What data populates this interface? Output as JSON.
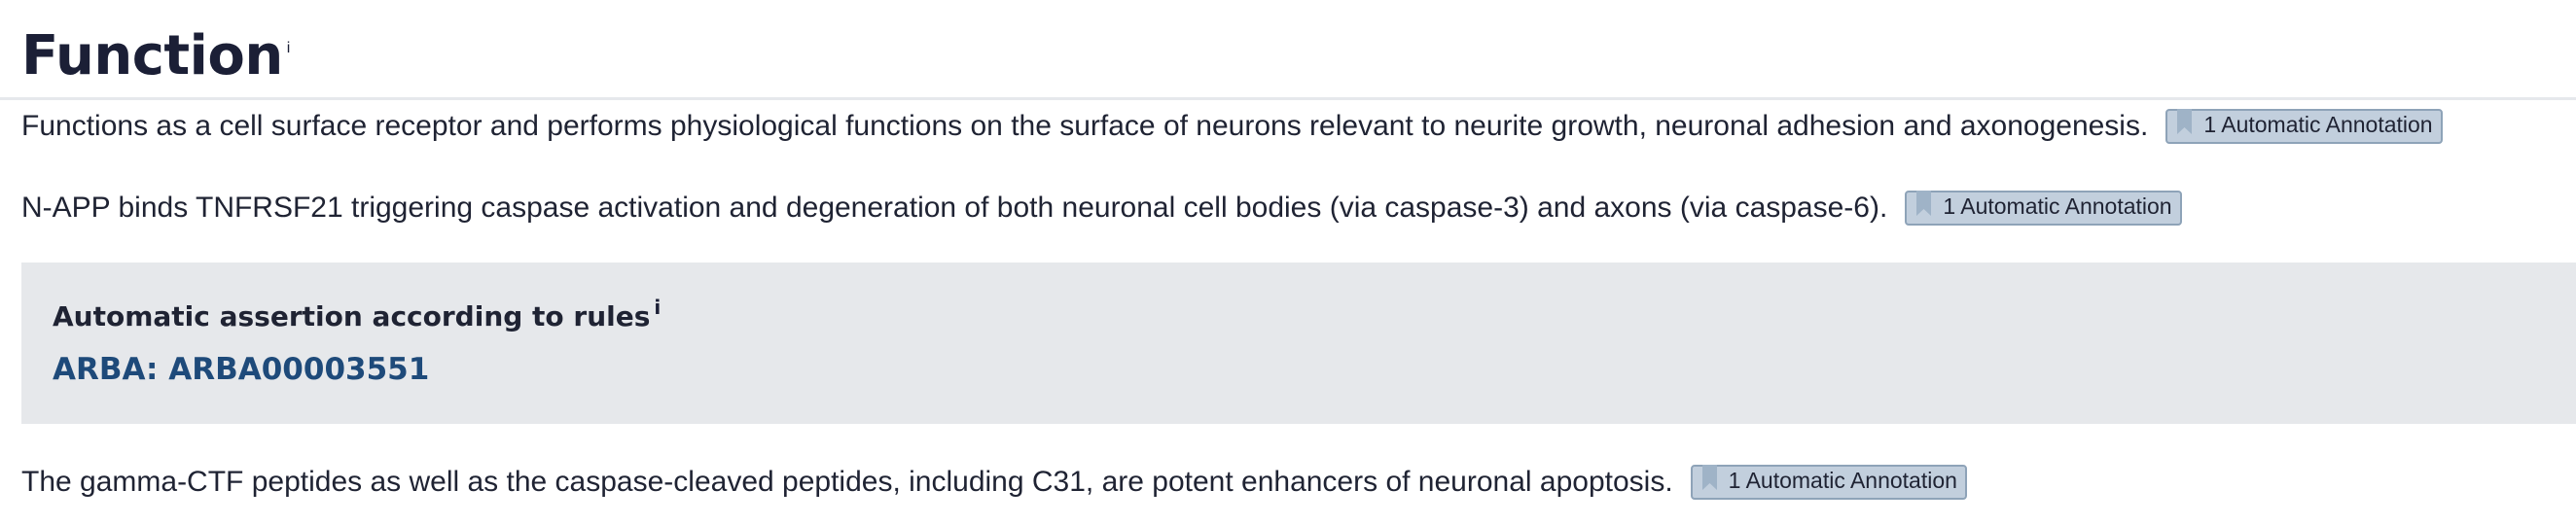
{
  "section": {
    "title": "Function",
    "info_marker": "i"
  },
  "paragraphs": [
    {
      "text": "Functions as a cell surface receptor and performs physiological functions on the surface of neurons relevant to neurite growth, neuronal adhesion and axonogenesis.",
      "evidence_label": "1 Automatic Annotation"
    },
    {
      "text": "N-APP binds TNFRSF21 triggering caspase activation and degeneration of both neuronal cell bodies (via caspase-3) and axons (via caspase-6).",
      "evidence_label": "1 Automatic Annotation"
    },
    {
      "text": "The gamma-CTF peptides as well as the caspase-cleaved peptides, including C31, are potent enhancers of neuronal apoptosis.",
      "evidence_label": "1 Automatic Annotation"
    }
  ],
  "rule_box": {
    "title": "Automatic assertion according to rules",
    "info_marker": "i",
    "link_text": "ARBA: ARBA00003551"
  },
  "icons": {
    "evidence": "bookmark-icon"
  },
  "colors": {
    "title": "#1b1f36",
    "text": "#1f2333",
    "badge_bg": "#c2cfdd",
    "badge_border": "#8ea3b8",
    "rule_bg": "#e6e8eb",
    "link": "#1e4a7a"
  }
}
